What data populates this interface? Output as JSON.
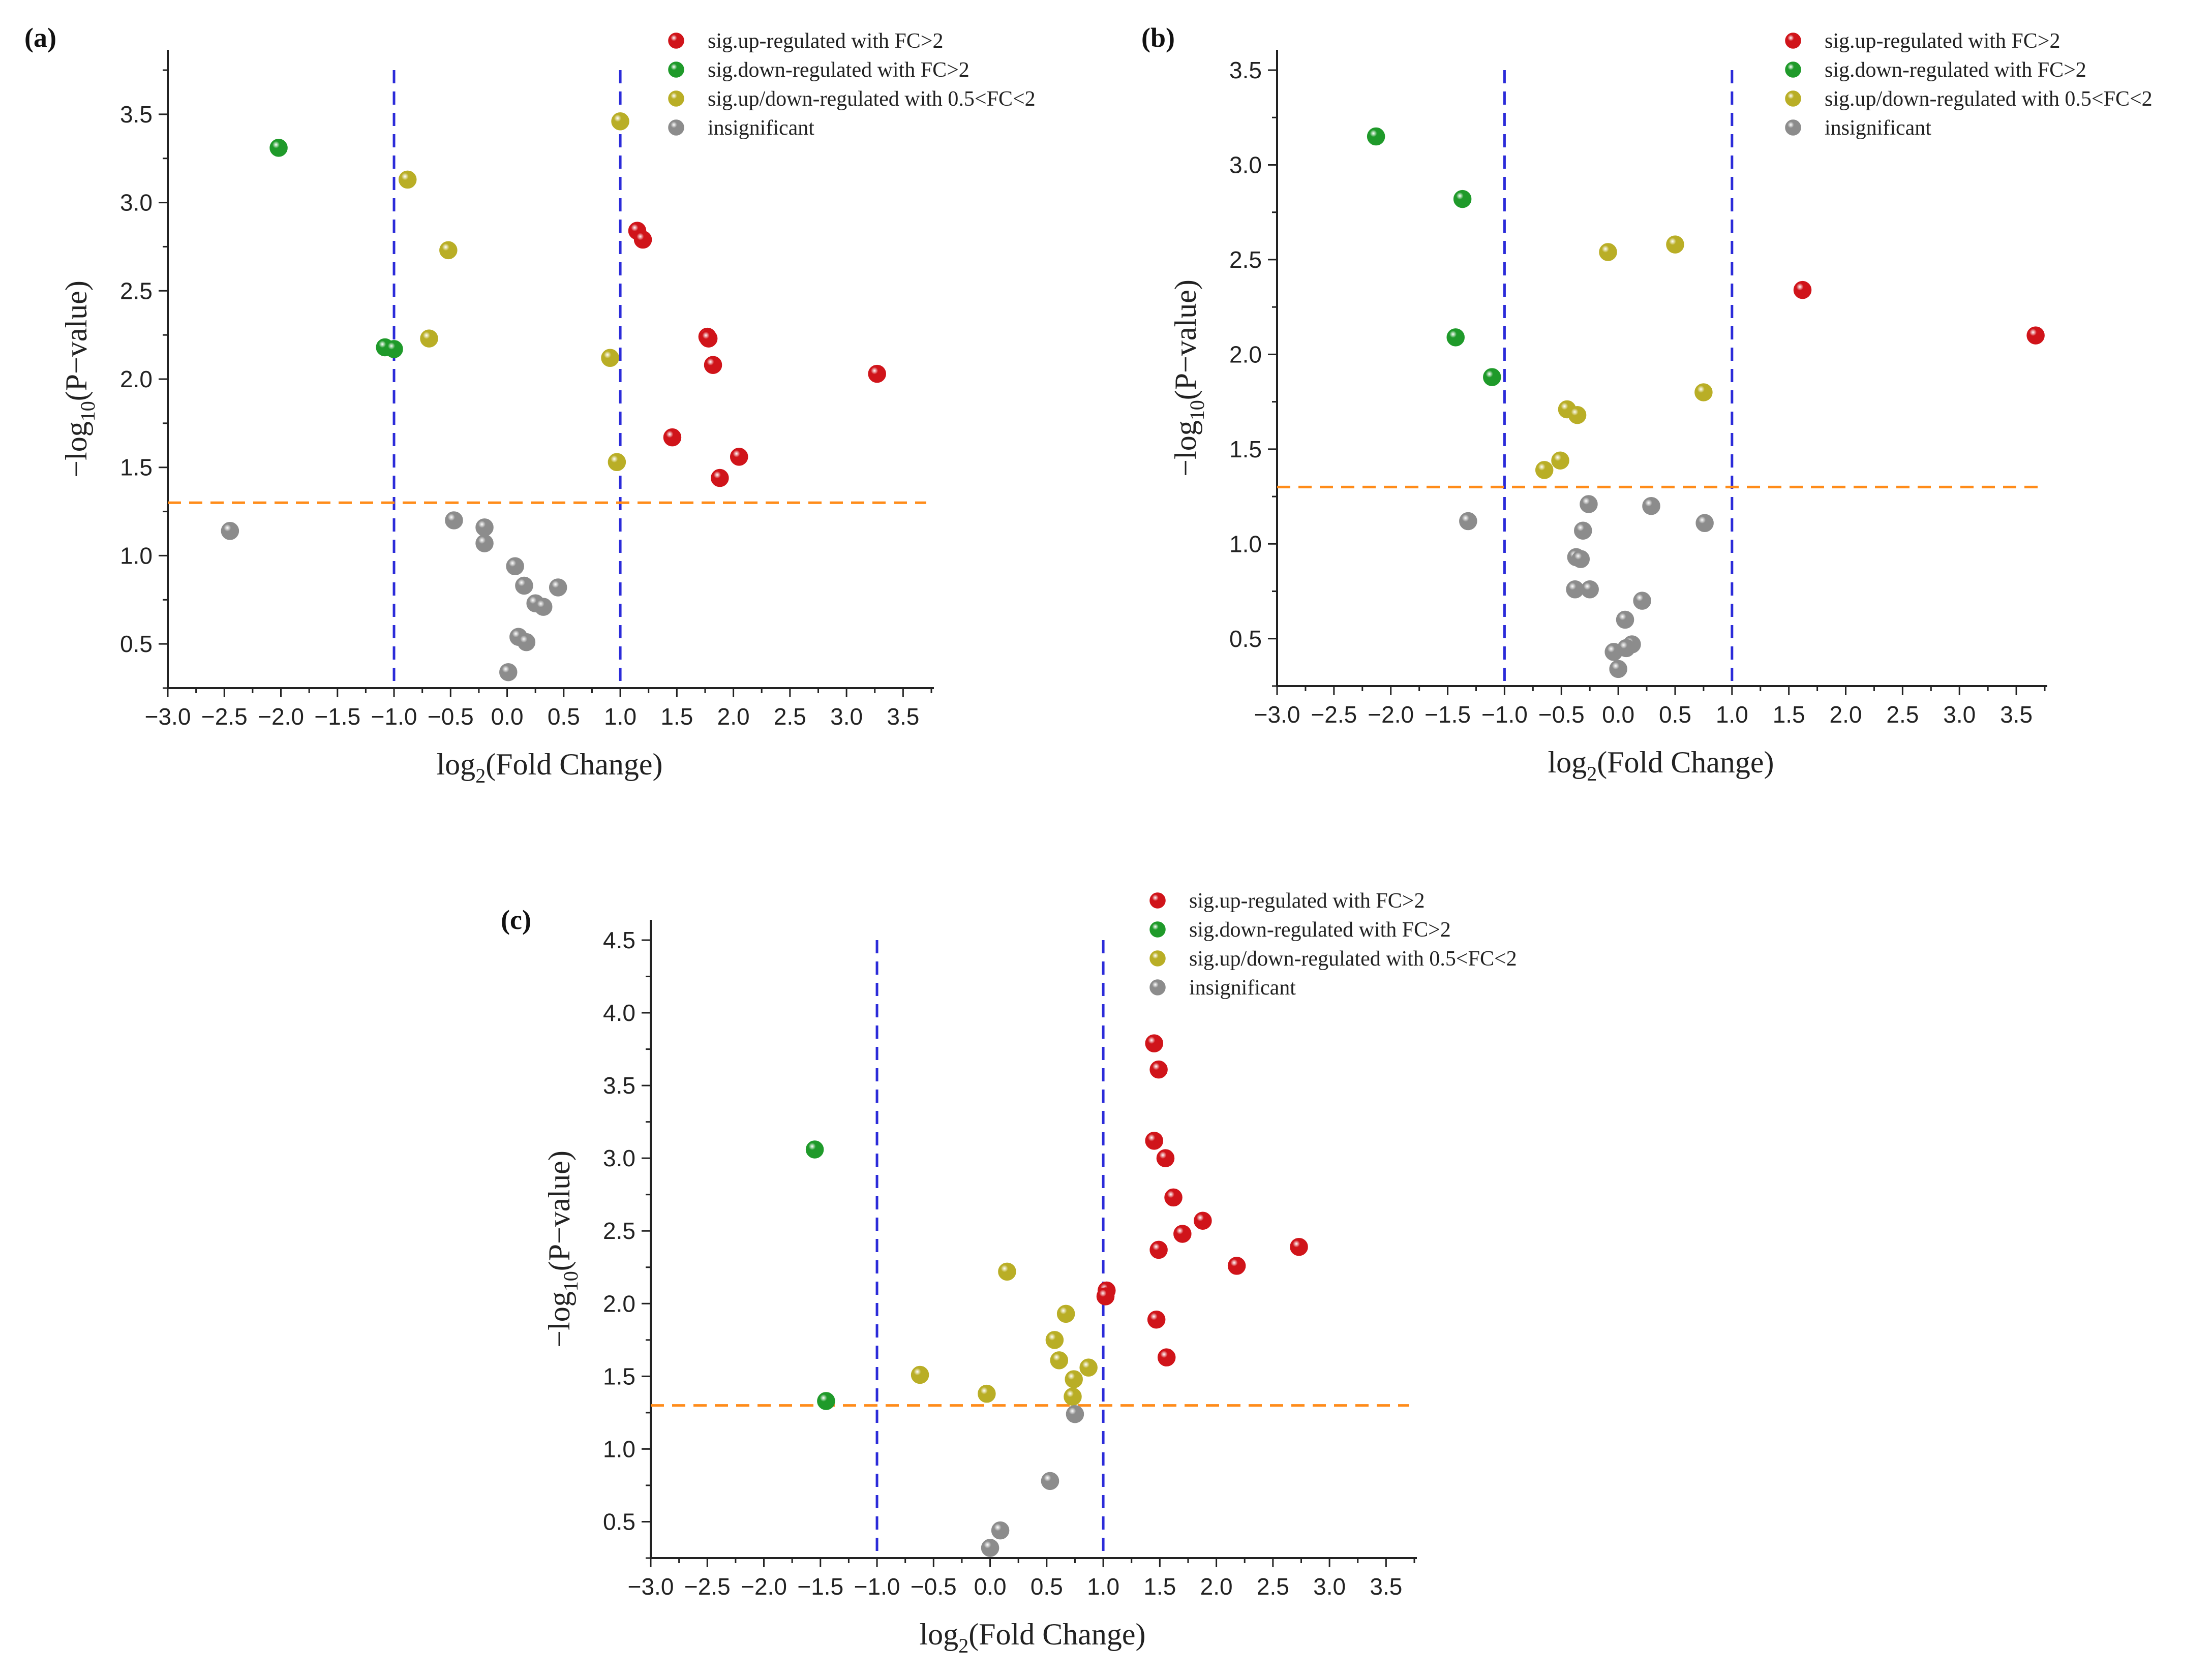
{
  "legend": {
    "up": "sig.up-regulated with FC>2",
    "down": "sig.down-regulated with FC>2",
    "mid": "sig.up/down-regulated with 0.5<FC<2",
    "ns": "insignificant"
  },
  "colors": {
    "up": "#d0141a",
    "down": "#1f9a2a",
    "mid": "#b9ae26",
    "ns": "#8c8c8c",
    "vline": "#2b2bd9",
    "hline": "#ff8c1a"
  },
  "chart_data": [
    {
      "type": "scatter",
      "panel": "(a)",
      "xlabel_main": "log",
      "xlabel_sub": "2",
      "xlabel_rest": "(Fold Change)",
      "ylabel_main": "−log",
      "ylabel_sub": "10",
      "ylabel_rest": "(P−value)",
      "xlim": [
        -3.0,
        3.75
      ],
      "ylim": [
        0.25,
        3.75
      ],
      "xticks": [
        "−3.0",
        "−2.5",
        "−2.0",
        "−1.5",
        "−1.0",
        "−0.5",
        "0.0",
        "0.5",
        "1.0",
        "1.5",
        "2.0",
        "2.5",
        "3.0",
        "3.5"
      ],
      "yticks": [
        "0.5",
        "1.0",
        "1.5",
        "2.0",
        "2.5",
        "3.0",
        "3.5"
      ],
      "vlines": [
        -1,
        1
      ],
      "hline": 1.3,
      "series": [
        {
          "name": "up",
          "points": [
            [
              1.15,
              2.84
            ],
            [
              1.2,
              2.79
            ],
            [
              1.77,
              2.24
            ],
            [
              1.78,
              2.23
            ],
            [
              1.82,
              2.08
            ],
            [
              3.27,
              2.03
            ],
            [
              1.46,
              1.67
            ],
            [
              2.05,
              1.56
            ],
            [
              1.88,
              1.44
            ]
          ]
        },
        {
          "name": "down",
          "points": [
            [
              -2.02,
              3.31
            ],
            [
              -1.08,
              2.18
            ],
            [
              -1.0,
              2.17
            ]
          ]
        },
        {
          "name": "mid",
          "points": [
            [
              1.0,
              3.46
            ],
            [
              -0.88,
              3.13
            ],
            [
              -0.52,
              2.73
            ],
            [
              -0.69,
              2.23
            ],
            [
              0.91,
              2.12
            ],
            [
              0.97,
              1.53
            ]
          ]
        },
        {
          "name": "ns",
          "points": [
            [
              -2.45,
              1.14
            ],
            [
              -0.47,
              1.2
            ],
            [
              -0.2,
              1.16
            ],
            [
              -0.2,
              1.07
            ],
            [
              0.07,
              0.94
            ],
            [
              0.15,
              0.83
            ],
            [
              0.45,
              0.82
            ],
            [
              0.25,
              0.73
            ],
            [
              0.32,
              0.71
            ],
            [
              0.1,
              0.54
            ],
            [
              0.17,
              0.51
            ],
            [
              0.01,
              0.34
            ]
          ]
        }
      ]
    },
    {
      "type": "scatter",
      "panel": "(b)",
      "xlabel_main": "log",
      "xlabel_sub": "2",
      "xlabel_rest": "(Fold Change)",
      "ylabel_main": "−log",
      "ylabel_sub": "10",
      "ylabel_rest": "(P−value)",
      "xlim": [
        -3.0,
        3.75
      ],
      "ylim": [
        0.25,
        3.5
      ],
      "xticks": [
        "−3.0",
        "−2.5",
        "−2.0",
        "−1.5",
        "−1.0",
        "−0.5",
        "0.0",
        "0.5",
        "1.0",
        "1.5",
        "2.0",
        "2.5",
        "3.0",
        "3.5"
      ],
      "yticks": [
        "0.5",
        "1.0",
        "1.5",
        "2.0",
        "2.5",
        "3.0",
        "3.5"
      ],
      "vlines": [
        -1,
        1
      ],
      "hline": 1.3,
      "series": [
        {
          "name": "up",
          "points": [
            [
              1.62,
              2.34
            ],
            [
              3.67,
              2.1
            ]
          ]
        },
        {
          "name": "down",
          "points": [
            [
              -2.13,
              3.15
            ],
            [
              -1.37,
              2.82
            ],
            [
              -1.43,
              2.09
            ],
            [
              -1.11,
              1.88
            ]
          ]
        },
        {
          "name": "mid",
          "points": [
            [
              -0.09,
              2.54
            ],
            [
              0.5,
              2.58
            ],
            [
              0.75,
              1.8
            ],
            [
              -0.45,
              1.71
            ],
            [
              -0.36,
              1.68
            ],
            [
              -0.51,
              1.44
            ],
            [
              -0.65,
              1.39
            ]
          ]
        },
        {
          "name": "ns",
          "points": [
            [
              -1.32,
              1.12
            ],
            [
              -0.26,
              1.21
            ],
            [
              0.29,
              1.2
            ],
            [
              0.76,
              1.11
            ],
            [
              -0.31,
              1.07
            ],
            [
              -0.37,
              0.93
            ],
            [
              -0.33,
              0.92
            ],
            [
              -0.38,
              0.76
            ],
            [
              -0.25,
              0.76
            ],
            [
              0.21,
              0.7
            ],
            [
              0.06,
              0.6
            ],
            [
              0.12,
              0.47
            ],
            [
              0.07,
              0.45
            ],
            [
              -0.04,
              0.43
            ],
            [
              0.0,
              0.34
            ]
          ]
        }
      ]
    },
    {
      "type": "scatter",
      "panel": "(c)",
      "xlabel_main": "log",
      "xlabel_sub": "2",
      "xlabel_rest": "(Fold Change)",
      "ylabel_main": "−log",
      "ylabel_sub": "10",
      "ylabel_rest": "(P−value)",
      "xlim": [
        -3.0,
        3.75
      ],
      "ylim": [
        0.25,
        4.5
      ],
      "xticks": [
        "−3.0",
        "−2.5",
        "−2.0",
        "−1.5",
        "−1.0",
        "−0.5",
        "0.0",
        "0.5",
        "1.0",
        "1.5",
        "2.0",
        "2.5",
        "3.0",
        "3.5"
      ],
      "yticks": [
        "0.5",
        "1.0",
        "1.5",
        "2.0",
        "2.5",
        "3.0",
        "3.5",
        "4.0",
        "4.5"
      ],
      "vlines": [
        -1,
        1
      ],
      "hline": 1.3,
      "series": [
        {
          "name": "up",
          "points": [
            [
              1.45,
              3.79
            ],
            [
              1.49,
              3.61
            ],
            [
              1.45,
              3.12
            ],
            [
              1.55,
              3.0
            ],
            [
              1.62,
              2.73
            ],
            [
              1.88,
              2.57
            ],
            [
              1.7,
              2.48
            ],
            [
              2.73,
              2.39
            ],
            [
              1.49,
              2.37
            ],
            [
              2.18,
              2.26
            ],
            [
              1.03,
              2.09
            ],
            [
              1.02,
              2.05
            ],
            [
              1.47,
              1.89
            ],
            [
              1.56,
              1.63
            ]
          ]
        },
        {
          "name": "down",
          "points": [
            [
              -1.55,
              3.06
            ],
            [
              -1.45,
              1.33
            ]
          ]
        },
        {
          "name": "mid",
          "points": [
            [
              0.15,
              2.22
            ],
            [
              0.67,
              1.93
            ],
            [
              0.57,
              1.75
            ],
            [
              0.61,
              1.61
            ],
            [
              0.87,
              1.56
            ],
            [
              -0.62,
              1.51
            ],
            [
              0.74,
              1.48
            ],
            [
              -0.03,
              1.38
            ],
            [
              0.73,
              1.36
            ]
          ]
        },
        {
          "name": "ns",
          "points": [
            [
              0.75,
              1.24
            ],
            [
              0.53,
              0.78
            ],
            [
              0.09,
              0.44
            ],
            [
              0.0,
              0.32
            ]
          ]
        }
      ]
    }
  ]
}
